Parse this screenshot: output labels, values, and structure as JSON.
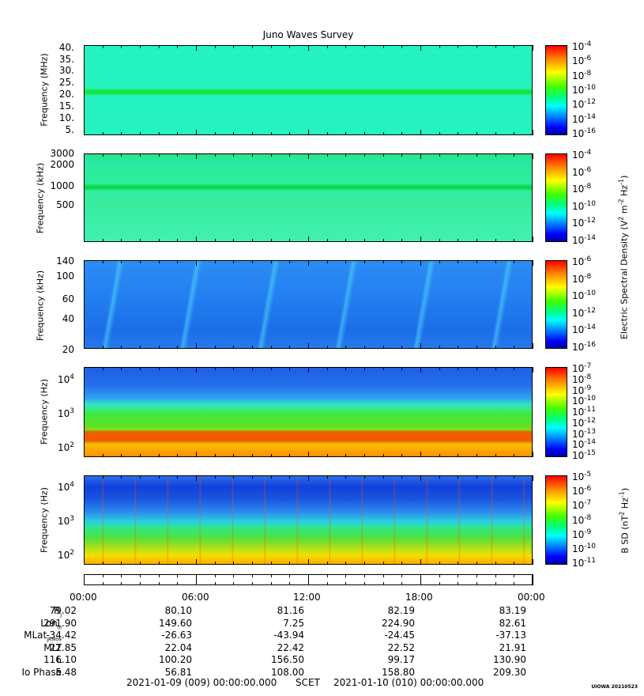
{
  "title": "Juno Waves Survey",
  "panels": [
    {
      "ylabel": "Frequency (MHz)",
      "yticks": [
        "40.",
        "35.",
        "30.",
        "25.",
        "20.",
        "15.",
        "10.",
        "5."
      ],
      "cbar_labels": [
        "-4",
        "-6",
        "-8",
        "-10",
        "-12",
        "-14",
        "-16"
      ]
    },
    {
      "ylabel": "Frequency (kHz)",
      "yticks": [
        "3000",
        "2000",
        "1000",
        "500"
      ],
      "cbar_labels": [
        "-4",
        "-6",
        "-8",
        "-10",
        "-12",
        "-14"
      ]
    },
    {
      "ylabel": "Frequency (kHz)",
      "yticks": [
        "140",
        "100",
        "60",
        "40",
        "20"
      ],
      "cbar_labels": [
        "-6",
        "-8",
        "-10",
        "-12",
        "-14",
        "-16"
      ]
    },
    {
      "ylabel": "Frequency (Hz)",
      "yticks": [
        "4",
        "3",
        "2"
      ],
      "cbar_labels": [
        "-7",
        "-8",
        "-9",
        "-10",
        "-11",
        "-12",
        "-13",
        "-14",
        "-15"
      ]
    },
    {
      "ylabel": "Frequency (Hz)",
      "yticks": [
        "4",
        "3",
        "2"
      ],
      "cbar_labels": [
        "-5",
        "-6",
        "-7",
        "-8",
        "-9",
        "-10",
        "-11"
      ]
    }
  ],
  "colorbar_titles": {
    "electric": "Electric Spectral Density (V",
    "electric_units_tail": " m",
    "electric_units_end": " Hz",
    "magnetic": "B SD (nT",
    "magnetic_units_end": " Hz"
  },
  "tick_base": "10",
  "time_labels": [
    "00:00",
    "06:00",
    "12:00",
    "18:00",
    "00:00"
  ],
  "ephemeris": {
    "row_labels": [
      "R",
      "Lon",
      "MLat",
      "MLT",
      "L",
      "Io Phase"
    ],
    "row_subs": [
      "J",
      "III",
      "JRM09",
      "",
      "",
      ""
    ],
    "columns": [
      [
        "79.02",
        "291.90",
        "-34.42",
        "22.85",
        "116.10",
        "5.48"
      ],
      [
        "80.10",
        "149.60",
        "-26.63",
        "22.04",
        "100.20",
        "56.81"
      ],
      [
        "81.16",
        "7.25",
        "-43.94",
        "22.42",
        "156.50",
        "108.00"
      ],
      [
        "82.19",
        "224.90",
        "-24.45",
        "22.52",
        "99.17",
        "158.80"
      ],
      [
        "83.19",
        "82.61",
        "-37.13",
        "21.91",
        "130.90",
        "209.30"
      ]
    ]
  },
  "footer": {
    "start": "2021-01-09 (009) 00:00:00.000",
    "scet": "SCET",
    "end": "2021-01-10 (010) 00:00:00.000"
  },
  "stamp": "UIOWA 20210523",
  "chart_data": {
    "type": "heatmap",
    "title": "Juno Waves Survey",
    "x_axis": {
      "label": "SCET",
      "ticks": [
        "00:00",
        "06:00",
        "12:00",
        "18:00",
        "00:00"
      ],
      "range": [
        "2021-01-09 (009) 00:00:00.000",
        "2021-01-10 (010) 00:00:00.000"
      ]
    },
    "colormap": "rainbow (blue low, red high)",
    "panels": [
      {
        "ylabel": "Frequency (MHz)",
        "yrange": [
          3.5,
          41
        ],
        "yscale": "linear",
        "ytick_values": [
          40,
          35,
          30,
          25,
          20,
          15,
          10,
          5
        ],
        "colorbar_exponents": [
          -4,
          -6,
          -8,
          -10,
          -12,
          -14,
          -16
        ],
        "colorbar_label": "Electric Spectral Density (V2 m-2 Hz-1)"
      },
      {
        "ylabel": "Frequency (kHz)",
        "yrange": [
          140,
          3000
        ],
        "yscale": "log",
        "ytick_values": [
          3000,
          2000,
          1000,
          500
        ],
        "colorbar_exponents": [
          -4,
          -6,
          -8,
          -10,
          -12,
          -14
        ],
        "colorbar_label": "Electric Spectral Density (V2 m-2 Hz-1)"
      },
      {
        "ylabel": "Frequency (kHz)",
        "yrange": [
          20,
          140
        ],
        "yscale": "log",
        "ytick_values": [
          140,
          100,
          60,
          40,
          20
        ],
        "colorbar_exponents": [
          -6,
          -8,
          -10,
          -12,
          -14,
          -16
        ],
        "colorbar_label": "Electric Spectral Density (V2 m-2 Hz-1)"
      },
      {
        "ylabel": "Frequency (Hz)",
        "yrange": [
          50,
          20000
        ],
        "yscale": "log",
        "ytick_values": [
          10000,
          1000,
          100
        ],
        "colorbar_exponents": [
          -7,
          -8,
          -9,
          -10,
          -11,
          -12,
          -13,
          -14,
          -15
        ],
        "colorbar_label": "Electric Spectral Density (V2 m-2 Hz-1)"
      },
      {
        "ylabel": "Frequency (Hz)",
        "yrange": [
          50,
          20000
        ],
        "yscale": "log",
        "ytick_values": [
          10000,
          1000,
          100
        ],
        "colorbar_exponents": [
          -5,
          -6,
          -7,
          -8,
          -9,
          -10,
          -11
        ],
        "colorbar_label": "B SD (nT2 Hz-1)"
      }
    ]
  }
}
